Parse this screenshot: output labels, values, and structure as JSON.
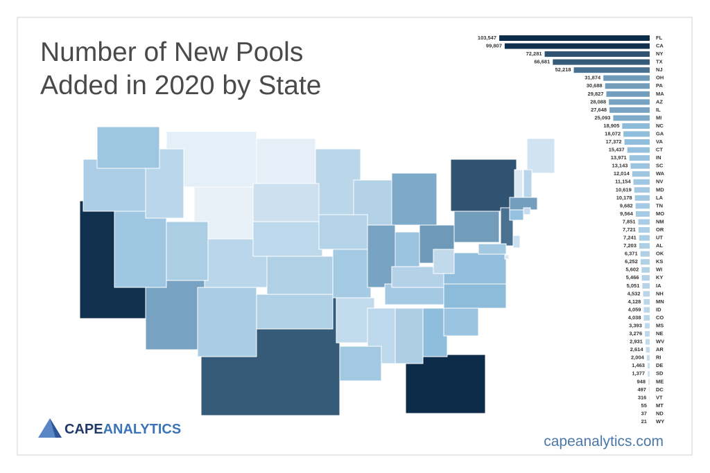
{
  "chart_data": {
    "type": "bar",
    "orientation": "horizontal",
    "title": "Number of New Pools Added in 2020 by State",
    "categories": [
      "FL",
      "CA",
      "NY",
      "TX",
      "NJ",
      "OH",
      "PA",
      "MA",
      "AZ",
      "IL",
      "MI",
      "NC",
      "GA",
      "VA",
      "CT",
      "IN",
      "SC",
      "WA",
      "NV",
      "MD",
      "LA",
      "TN",
      "MO",
      "NM",
      "OR",
      "UT",
      "AL",
      "OK",
      "KS",
      "WI",
      "KY",
      "IA",
      "NH",
      "MN",
      "ID",
      "CO",
      "MS",
      "NE",
      "WV",
      "AR",
      "RI",
      "DE",
      "SD",
      "ME",
      "DC",
      "VT",
      "MT",
      "ND",
      "WY"
    ],
    "values": [
      103547,
      99807,
      72281,
      66681,
      52218,
      31874,
      30688,
      29827,
      28088,
      27648,
      25093,
      18905,
      18072,
      17372,
      15437,
      13971,
      13143,
      12014,
      11154,
      10619,
      10178,
      9682,
      9564,
      7851,
      7721,
      7241,
      7203,
      6371,
      6252,
      5602,
      5466,
      5051,
      4532,
      4128,
      4059,
      4038,
      3393,
      3276,
      2931,
      2614,
      2004,
      1463,
      1377,
      948,
      497,
      316,
      55,
      37,
      21
    ],
    "value_labels": [
      "103,547",
      "99,807",
      "72,281",
      "66,681",
      "52,218",
      "31,874",
      "30,688",
      "29,827",
      "28,088",
      "27,648",
      "25,093",
      "18,905",
      "18,072",
      "17,372",
      "15,437",
      "13,971",
      "13,143",
      "12,014",
      "11,154",
      "10,619",
      "10,178",
      "9,682",
      "9,564",
      "7,851",
      "7,721",
      "7,241",
      "7,203",
      "6,371",
      "6,252",
      "5,602",
      "5,466",
      "5,051",
      "4,532",
      "4,128",
      "4,059",
      "4,038",
      "3,393",
      "3,276",
      "2,931",
      "2,614",
      "2,004",
      "1,463",
      "1,377",
      "948",
      "497",
      "316",
      "55",
      "37",
      "21"
    ],
    "xlim": [
      0,
      105000
    ],
    "color_scale": [
      "#eef4fa",
      "#8fbddc",
      "#0c2c4a"
    ],
    "brand": {
      "first": "CAPE",
      "second": "ANALYTICS"
    },
    "website": "capeanalytics.com"
  }
}
